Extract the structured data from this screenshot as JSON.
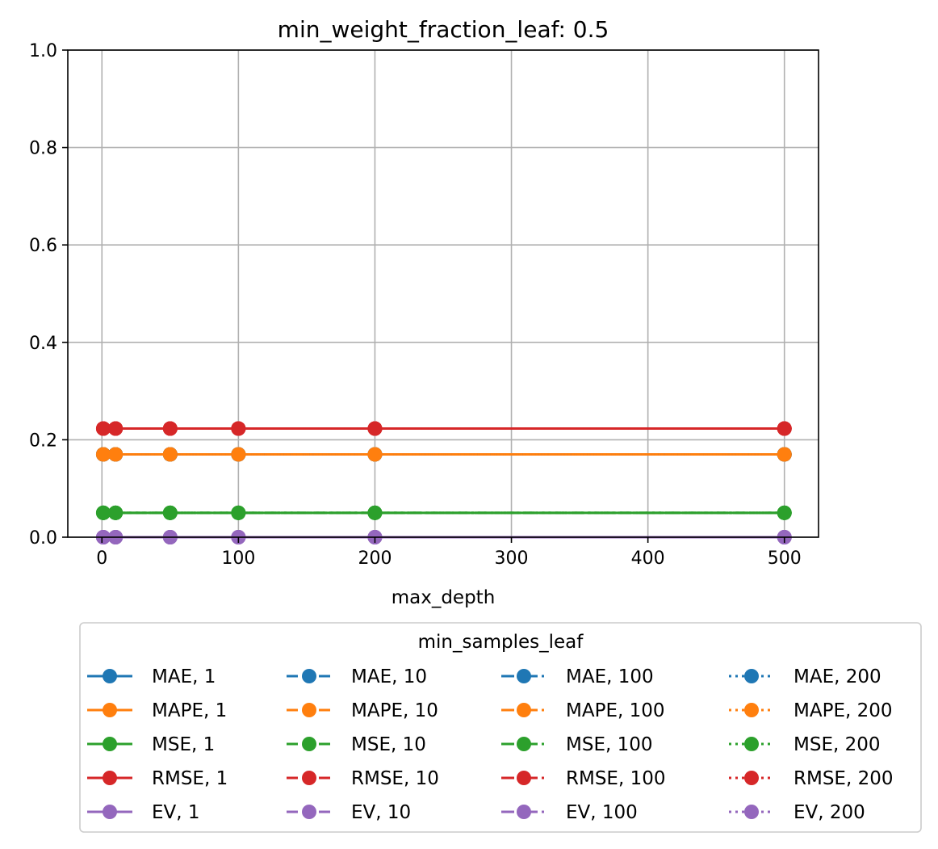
{
  "chart_data": {
    "type": "line",
    "title": "min_weight_fraction_leaf: 0.5",
    "xlabel": "max_depth",
    "ylabel": "",
    "x": [
      1,
      10,
      50,
      100,
      200,
      500
    ],
    "xlim": [
      -25,
      525
    ],
    "ylim": [
      0.0,
      1.0
    ],
    "xticks": [
      0,
      100,
      200,
      300,
      400,
      500
    ],
    "xtick_labels": [
      "0",
      "100",
      "200",
      "300",
      "400",
      "500"
    ],
    "yticks": [
      0.0,
      0.2,
      0.4,
      0.6,
      0.8,
      1.0
    ],
    "ytick_labels": [
      "0.0",
      "0.2",
      "0.4",
      "0.6",
      "0.8",
      "1.0"
    ],
    "grid": true,
    "legend_title": "min_samples_leaf",
    "legend_placement": "below",
    "colors": {
      "MAE": "#1f77b4",
      "MAPE": "#ff7f0e",
      "MSE": "#2ca02c",
      "RMSE": "#d62728",
      "EV": "#9467bd"
    },
    "series": [
      {
        "name": "MAE, 1",
        "metric": "MAE",
        "style": "solid",
        "values": [
          0.17,
          0.17,
          0.17,
          0.17,
          0.17,
          0.17
        ]
      },
      {
        "name": "MAPE, 1",
        "metric": "MAPE",
        "style": "solid",
        "values": [
          0.17,
          0.17,
          0.17,
          0.17,
          0.17,
          0.17
        ]
      },
      {
        "name": "MSE, 1",
        "metric": "MSE",
        "style": "solid",
        "values": [
          0.05,
          0.05,
          0.05,
          0.05,
          0.05,
          0.05
        ]
      },
      {
        "name": "RMSE, 1",
        "metric": "RMSE",
        "style": "solid",
        "values": [
          0.223,
          0.223,
          0.223,
          0.223,
          0.223,
          0.223
        ]
      },
      {
        "name": "EV, 1",
        "metric": "EV",
        "style": "solid",
        "values": [
          0.0,
          0.0,
          0.0,
          0.0,
          0.0,
          0.0
        ]
      },
      {
        "name": "MAE, 10",
        "metric": "MAE",
        "style": "dashed",
        "values": [
          0.17,
          0.17,
          0.17,
          0.17,
          0.17,
          0.17
        ]
      },
      {
        "name": "MAPE, 10",
        "metric": "MAPE",
        "style": "dashed",
        "values": [
          0.17,
          0.17,
          0.17,
          0.17,
          0.17,
          0.17
        ]
      },
      {
        "name": "MSE, 10",
        "metric": "MSE",
        "style": "dashed",
        "values": [
          0.05,
          0.05,
          0.05,
          0.05,
          0.05,
          0.05
        ]
      },
      {
        "name": "RMSE, 10",
        "metric": "RMSE",
        "style": "dashed",
        "values": [
          0.223,
          0.223,
          0.223,
          0.223,
          0.223,
          0.223
        ]
      },
      {
        "name": "EV, 10",
        "metric": "EV",
        "style": "dashed",
        "values": [
          0.0,
          0.0,
          0.0,
          0.0,
          0.0,
          0.0
        ]
      },
      {
        "name": "MAE, 100",
        "metric": "MAE",
        "style": "dashdot",
        "values": [
          0.17,
          0.17,
          0.17,
          0.17,
          0.17,
          0.17
        ]
      },
      {
        "name": "MAPE, 100",
        "metric": "MAPE",
        "style": "dashdot",
        "values": [
          0.17,
          0.17,
          0.17,
          0.17,
          0.17,
          0.17
        ]
      },
      {
        "name": "MSE, 100",
        "metric": "MSE",
        "style": "dashdot",
        "values": [
          0.05,
          0.05,
          0.05,
          0.05,
          0.05,
          0.05
        ]
      },
      {
        "name": "RMSE, 100",
        "metric": "RMSE",
        "style": "dashdot",
        "values": [
          0.223,
          0.223,
          0.223,
          0.223,
          0.223,
          0.223
        ]
      },
      {
        "name": "EV, 100",
        "metric": "EV",
        "style": "dashdot",
        "values": [
          0.0,
          0.0,
          0.0,
          0.0,
          0.0,
          0.0
        ]
      },
      {
        "name": "MAE, 200",
        "metric": "MAE",
        "style": "dotted",
        "values": [
          0.17,
          0.17,
          0.17,
          0.17,
          0.17,
          0.17
        ]
      },
      {
        "name": "MAPE, 200",
        "metric": "MAPE",
        "style": "dotted",
        "values": [
          0.17,
          0.17,
          0.17,
          0.17,
          0.17,
          0.17
        ]
      },
      {
        "name": "MSE, 200",
        "metric": "MSE",
        "style": "dotted",
        "values": [
          0.05,
          0.05,
          0.05,
          0.05,
          0.05,
          0.05
        ]
      },
      {
        "name": "RMSE, 200",
        "metric": "RMSE",
        "style": "dotted",
        "values": [
          0.223,
          0.223,
          0.223,
          0.223,
          0.223,
          0.223
        ]
      },
      {
        "name": "EV, 200",
        "metric": "EV",
        "style": "dotted",
        "values": [
          0.0,
          0.0,
          0.0,
          0.0,
          0.0,
          0.0
        ]
      }
    ]
  }
}
